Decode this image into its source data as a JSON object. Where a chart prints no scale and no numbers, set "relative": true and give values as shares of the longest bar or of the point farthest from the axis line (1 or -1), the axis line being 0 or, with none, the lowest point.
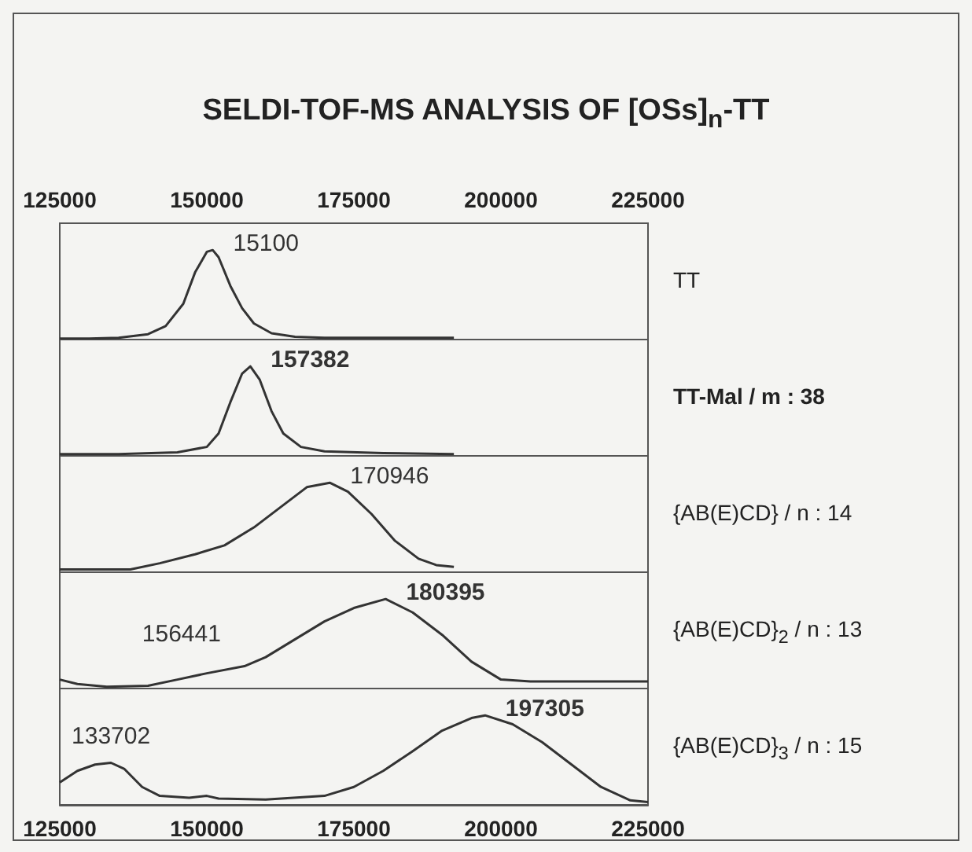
{
  "chart_data": [
    {
      "type": "line",
      "title": "SELDI-TOF-MS ANALYSIS OF [OSs]$_{n}$-TT",
      "relative": true,
      "xlim": [
        125000,
        225000
      ],
      "xticks": [
        125000,
        150000,
        175000,
        200000,
        225000
      ],
      "series": [
        {
          "name": "TT",
          "color": "#333333",
          "x": [
            125000,
            130000,
            135000,
            140000,
            143000,
            146000,
            148000,
            150000,
            151000,
            152000,
            154000,
            156000,
            158000,
            161000,
            165000,
            170000,
            180000,
            192000
          ],
          "values": [
            0.01,
            0.01,
            0.02,
            0.06,
            0.15,
            0.4,
            0.75,
            0.98,
            1.0,
            0.92,
            0.6,
            0.35,
            0.18,
            0.07,
            0.03,
            0.02,
            0.02,
            0.02
          ]
        }
      ],
      "annotations": [
        {
          "text": "15100",
          "x": 151000,
          "y": 1.0
        }
      ]
    },
    {
      "type": "line",
      "relative": true,
      "xlim": [
        125000,
        225000
      ],
      "xticks": [
        125000,
        150000,
        175000,
        200000,
        225000
      ],
      "tick_labels": false,
      "series": [
        {
          "name": "TT-Mal / m :  38",
          "color": "#333333",
          "x": [
            125000,
            135000,
            145000,
            150000,
            152000,
            154000,
            156000,
            157400,
            159000,
            161000,
            163000,
            166000,
            170000,
            180000,
            192000
          ],
          "values": [
            0.02,
            0.02,
            0.04,
            0.1,
            0.25,
            0.6,
            0.92,
            1.0,
            0.85,
            0.5,
            0.25,
            0.1,
            0.05,
            0.03,
            0.02
          ]
        }
      ],
      "annotations": [
        {
          "text": "157382",
          "x": 157400,
          "y": 1.0
        }
      ]
    },
    {
      "type": "line",
      "relative": true,
      "xlim": [
        125000,
        225000
      ],
      "xticks": [
        125000,
        150000,
        175000,
        200000,
        225000
      ],
      "tick_labels": false,
      "series": [
        {
          "name": "{AB(E)CD} / n : 14",
          "color": "#333333",
          "x": [
            125000,
            137000,
            142000,
            148000,
            153000,
            158000,
            163000,
            167000,
            170900,
            174000,
            178000,
            182000,
            186000,
            189000,
            192000
          ],
          "values": [
            0.03,
            0.03,
            0.1,
            0.2,
            0.3,
            0.5,
            0.75,
            0.95,
            1.0,
            0.9,
            0.65,
            0.35,
            0.15,
            0.08,
            0.06
          ]
        }
      ],
      "annotations": [
        {
          "text": "170946",
          "x": 170900,
          "y": 1.0
        }
      ]
    },
    {
      "type": "line",
      "relative": true,
      "xlim": [
        125000,
        225000
      ],
      "xticks": [
        125000,
        150000,
        175000,
        200000,
        225000
      ],
      "tick_labels": false,
      "series": [
        {
          "name": "{AB(E)CD}$_{2}$ / n : 13",
          "color": "#333333",
          "x": [
            125000,
            128000,
            133000,
            140000,
            145000,
            150000,
            156400,
            160000,
            165000,
            170000,
            175000,
            180400,
            185000,
            190000,
            195000,
            200000,
            205000,
            215000,
            225000
          ],
          "values": [
            0.1,
            0.05,
            0.02,
            0.03,
            0.1,
            0.17,
            0.25,
            0.35,
            0.55,
            0.75,
            0.9,
            1.0,
            0.85,
            0.6,
            0.3,
            0.1,
            0.08,
            0.08,
            0.08
          ]
        }
      ],
      "annotations": [
        {
          "text": "156441",
          "x": 156400,
          "y": 0.25
        },
        {
          "text": "180395",
          "x": 180400,
          "y": 1.0
        }
      ]
    },
    {
      "type": "line",
      "relative": true,
      "xlim": [
        125000,
        225000
      ],
      "xticks": [
        125000,
        150000,
        175000,
        200000,
        225000
      ],
      "series": [
        {
          "name": "{AB(E)CD}$_{3}$ / n : 15",
          "color": "#333333",
          "x": [
            125000,
            128000,
            131000,
            133700,
            136000,
            139000,
            142000,
            147000,
            150000,
            152000,
            160000,
            170000,
            175000,
            180000,
            185000,
            190000,
            195000,
            197300,
            202000,
            207000,
            212000,
            217000,
            222000,
            225000
          ],
          "values": [
            0.25,
            0.38,
            0.45,
            0.47,
            0.4,
            0.2,
            0.1,
            0.08,
            0.1,
            0.07,
            0.06,
            0.1,
            0.2,
            0.38,
            0.6,
            0.83,
            0.97,
            1.0,
            0.9,
            0.7,
            0.45,
            0.2,
            0.05,
            0.03
          ]
        }
      ],
      "annotations": [
        {
          "text": "133702",
          "x": 133700,
          "y": 0.47
        },
        {
          "text": "197305",
          "x": 197300,
          "y": 1.0
        }
      ]
    }
  ]
}
